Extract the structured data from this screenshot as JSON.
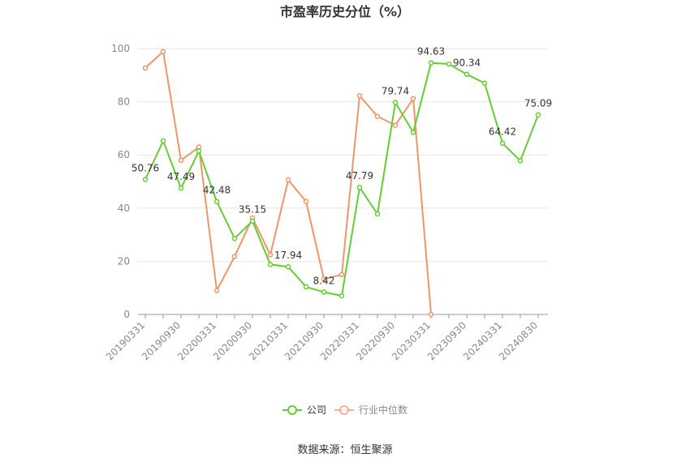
{
  "chart_data": {
    "type": "line",
    "title": "市盈率历史分位（%）",
    "source": "数据来源：恒生聚源",
    "ylim": [
      0,
      100
    ],
    "yticks": [
      0,
      20,
      40,
      60,
      80,
      100
    ],
    "grid": true,
    "legend_position": "bottom",
    "x": [
      "20190331",
      "20190630",
      "20190930",
      "20191231",
      "20200331",
      "20200630",
      "20200930",
      "20201231",
      "20210331",
      "20210630",
      "20210930",
      "20211231",
      "20220331",
      "20220630",
      "20220930",
      "20221231",
      "20230331",
      "20230630",
      "20230930",
      "20231231",
      "20240331",
      "20240630",
      "20240830"
    ],
    "xticks": [
      "20190331",
      "20190930",
      "20200331",
      "20200930",
      "20210331",
      "20210930",
      "20220331",
      "20220930",
      "20230331",
      "20230930",
      "20240331",
      "20240830"
    ],
    "series": [
      {
        "name": "公司",
        "color": "#66cc33",
        "values": [
          50.76,
          65.3,
          47.49,
          61.5,
          42.48,
          28.6,
          35.15,
          18.8,
          17.94,
          10.4,
          8.42,
          7.0,
          47.79,
          37.8,
          79.74,
          68.5,
          94.63,
          94.2,
          90.34,
          87.0,
          64.42,
          57.8,
          75.09
        ],
        "labels": {
          "0": "50.76",
          "2": "47.49",
          "4": "42.48",
          "6": "35.15",
          "8": "17.94",
          "10": "8.42",
          "12": "47.79",
          "14": "79.74",
          "16": "94.63",
          "18": "90.34",
          "20": "64.42",
          "22": "75.09"
        }
      },
      {
        "name": "行业中位数",
        "color": "#f0956a",
        "values": [
          92.7,
          98.9,
          58.0,
          63.0,
          9.0,
          21.8,
          36.3,
          22.4,
          50.6,
          42.5,
          13.3,
          15.0,
          82.3,
          74.5,
          71.2,
          81.2,
          0.0,
          null,
          null,
          null,
          null,
          null,
          null
        ]
      }
    ]
  }
}
